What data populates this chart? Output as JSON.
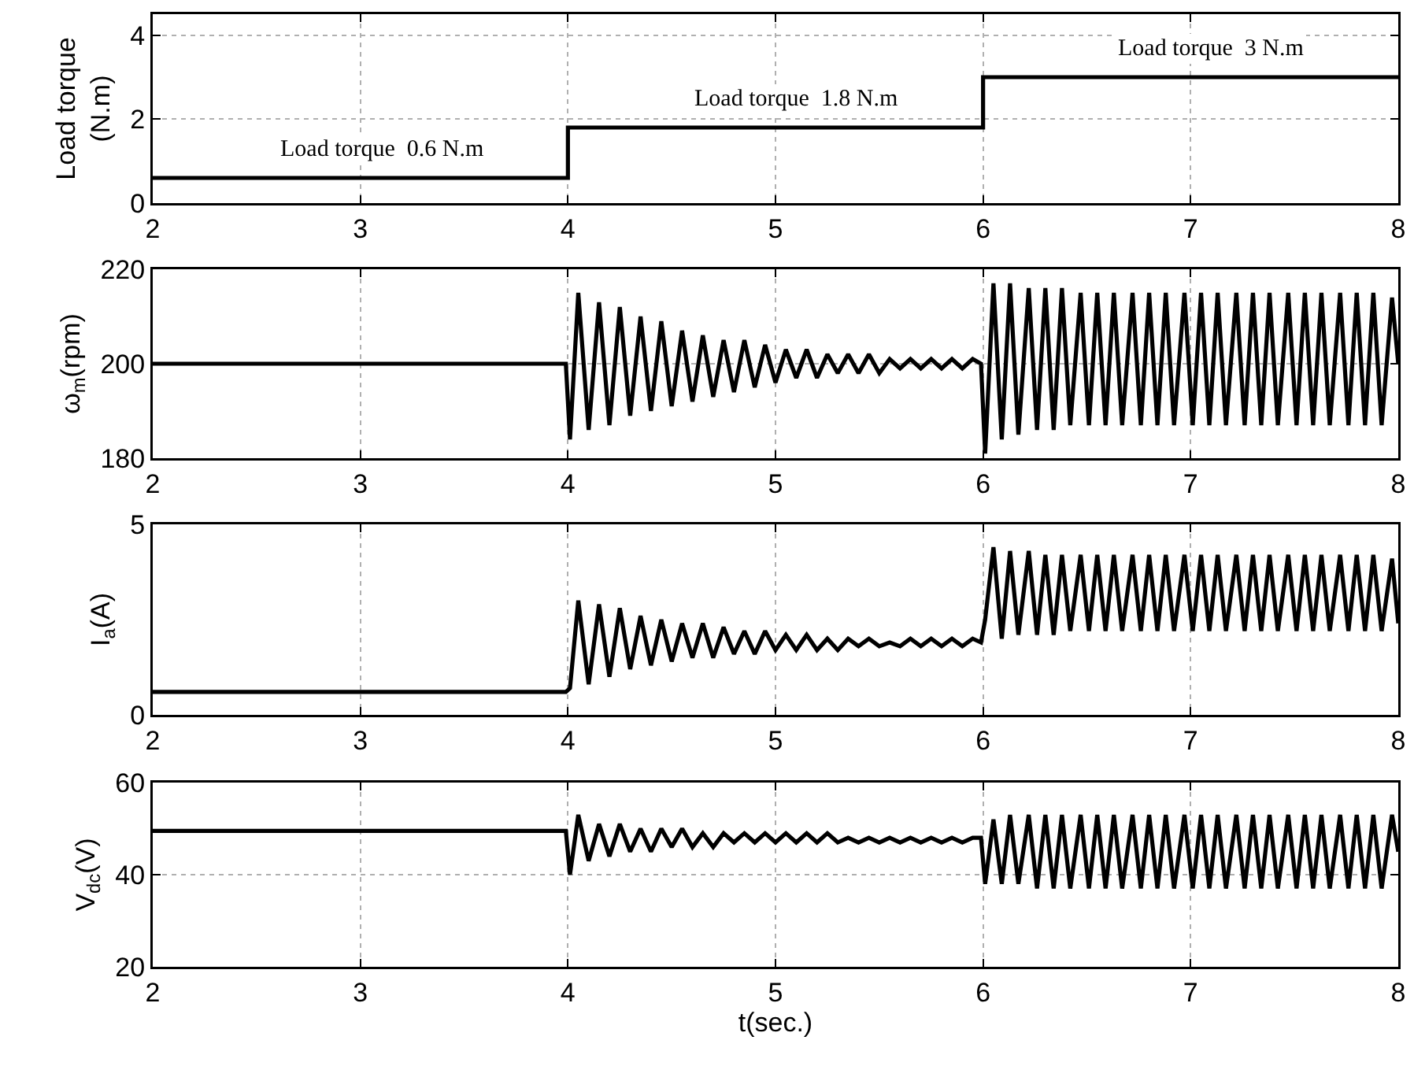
{
  "chart_data": [
    {
      "type": "step",
      "ylabel": "Load torque\n(N.m)",
      "x": [
        2,
        4,
        6,
        8
      ],
      "series": [
        {
          "color": "#000000",
          "values": [
            0.6,
            1.8,
            3,
            3
          ]
        }
      ],
      "xlim": [
        2,
        8
      ],
      "xticks": [
        2,
        3,
        4,
        5,
        6,
        7,
        8
      ],
      "ylim": [
        0,
        4.5
      ],
      "yticks": [
        0,
        2,
        4
      ],
      "grid": true,
      "annotations": [
        "Load torque  0.6 N.m",
        "Load torque  1.8 N.m",
        "Load torque  3 N.m"
      ]
    },
    {
      "type": "line",
      "ylabel": "ω$_{m}$(rpm)",
      "x": [
        2,
        3.99,
        4.01,
        4.05,
        4.1,
        4.15,
        4.2,
        4.25,
        4.3,
        4.35,
        4.4,
        4.45,
        4.5,
        4.55,
        4.6,
        4.65,
        4.7,
        4.75,
        4.8,
        4.85,
        4.9,
        4.95,
        5.0,
        5.05,
        5.1,
        5.15,
        5.2,
        5.25,
        5.3,
        5.35,
        5.4,
        5.45,
        5.5,
        5.55,
        5.6,
        5.65,
        5.7,
        5.75,
        5.8,
        5.85,
        5.9,
        5.95,
        5.99,
        6.01,
        6.05,
        6.09,
        6.13,
        6.17,
        6.22,
        6.26,
        6.3,
        6.34,
        6.38,
        6.42,
        6.47,
        6.51,
        6.55,
        6.59,
        6.63,
        6.67,
        6.72,
        6.76,
        6.8,
        6.84,
        6.88,
        6.92,
        6.97,
        7.01,
        7.05,
        7.09,
        7.13,
        7.17,
        7.22,
        7.26,
        7.3,
        7.34,
        7.38,
        7.42,
        7.47,
        7.51,
        7.55,
        7.59,
        7.63,
        7.67,
        7.72,
        7.76,
        7.8,
        7.84,
        7.88,
        7.92,
        7.97,
        8.0
      ],
      "series": [
        {
          "color": "#000000",
          "values": [
            200,
            200,
            184,
            215,
            186,
            213,
            187,
            212,
            189,
            210,
            190,
            209,
            191,
            207,
            192,
            206,
            193,
            205,
            194,
            205,
            195,
            204,
            196,
            203,
            197,
            203,
            197,
            202,
            198,
            202,
            198,
            202,
            198,
            201,
            199,
            201,
            199,
            201,
            199,
            201,
            199,
            201,
            200,
            181,
            217,
            184,
            217,
            185,
            216,
            186,
            216,
            186,
            216,
            187,
            215,
            187,
            215,
            187,
            215,
            187,
            215,
            187,
            215,
            187,
            215,
            187,
            215,
            187,
            215,
            187,
            215,
            187,
            215,
            187,
            215,
            187,
            215,
            187,
            215,
            187,
            215,
            187,
            215,
            187,
            215,
            187,
            215,
            187,
            215,
            187,
            214,
            200
          ]
        }
      ],
      "xlim": [
        2,
        8
      ],
      "xticks": [
        2,
        3,
        4,
        5,
        6,
        7,
        8
      ],
      "ylim": [
        180,
        220
      ],
      "yticks": [
        180,
        200,
        220
      ],
      "grid": true
    },
    {
      "type": "line",
      "ylabel": "I$_{a}$(A)",
      "x": [
        2,
        3.99,
        4.01,
        4.05,
        4.1,
        4.15,
        4.2,
        4.25,
        4.3,
        4.35,
        4.4,
        4.45,
        4.5,
        4.55,
        4.6,
        4.65,
        4.7,
        4.75,
        4.8,
        4.85,
        4.9,
        4.95,
        5.0,
        5.05,
        5.1,
        5.15,
        5.2,
        5.25,
        5.3,
        5.35,
        5.4,
        5.45,
        5.5,
        5.55,
        5.6,
        5.65,
        5.7,
        5.75,
        5.8,
        5.85,
        5.9,
        5.95,
        5.99,
        6.01,
        6.05,
        6.09,
        6.13,
        6.17,
        6.22,
        6.26,
        6.3,
        6.34,
        6.38,
        6.42,
        6.47,
        6.51,
        6.55,
        6.59,
        6.63,
        6.67,
        6.72,
        6.76,
        6.8,
        6.84,
        6.88,
        6.92,
        6.97,
        7.01,
        7.05,
        7.09,
        7.13,
        7.17,
        7.22,
        7.26,
        7.3,
        7.34,
        7.38,
        7.42,
        7.47,
        7.51,
        7.55,
        7.59,
        7.63,
        7.67,
        7.72,
        7.76,
        7.8,
        7.84,
        7.88,
        7.92,
        7.97,
        8.0
      ],
      "series": [
        {
          "color": "#000000",
          "values": [
            0.6,
            0.6,
            0.7,
            3.0,
            0.8,
            2.9,
            1.0,
            2.8,
            1.2,
            2.6,
            1.3,
            2.5,
            1.4,
            2.4,
            1.5,
            2.4,
            1.5,
            2.3,
            1.6,
            2.2,
            1.6,
            2.2,
            1.7,
            2.1,
            1.7,
            2.1,
            1.7,
            2.0,
            1.7,
            2.0,
            1.8,
            2.0,
            1.8,
            1.9,
            1.8,
            2.0,
            1.8,
            2.0,
            1.8,
            2.0,
            1.8,
            2.0,
            1.9,
            2.5,
            4.4,
            2.0,
            4.3,
            2.1,
            4.3,
            2.1,
            4.2,
            2.1,
            4.2,
            2.2,
            4.2,
            2.2,
            4.2,
            2.2,
            4.2,
            2.2,
            4.2,
            2.2,
            4.2,
            2.2,
            4.2,
            2.2,
            4.2,
            2.2,
            4.2,
            2.2,
            4.2,
            2.2,
            4.2,
            2.2,
            4.2,
            2.2,
            4.2,
            2.2,
            4.2,
            2.2,
            4.2,
            2.2,
            4.2,
            2.2,
            4.2,
            2.2,
            4.2,
            2.2,
            4.2,
            2.2,
            4.1,
            2.4
          ]
        }
      ],
      "xlim": [
        2,
        8
      ],
      "xticks": [
        2,
        3,
        4,
        5,
        6,
        7,
        8
      ],
      "ylim": [
        0,
        5
      ],
      "yticks": [
        0,
        5
      ],
      "grid": true
    },
    {
      "type": "line",
      "ylabel": "V$_{dc}$(V)",
      "xlabel": "t(sec.)",
      "x": [
        2,
        3.99,
        4.01,
        4.05,
        4.1,
        4.15,
        4.2,
        4.25,
        4.3,
        4.35,
        4.4,
        4.45,
        4.5,
        4.55,
        4.6,
        4.65,
        4.7,
        4.75,
        4.8,
        4.85,
        4.9,
        4.95,
        5.0,
        5.05,
        5.1,
        5.15,
        5.2,
        5.25,
        5.3,
        5.35,
        5.4,
        5.45,
        5.5,
        5.55,
        5.6,
        5.65,
        5.7,
        5.75,
        5.8,
        5.85,
        5.9,
        5.95,
        5.99,
        6.01,
        6.05,
        6.09,
        6.13,
        6.17,
        6.22,
        6.26,
        6.3,
        6.34,
        6.38,
        6.42,
        6.47,
        6.51,
        6.55,
        6.59,
        6.63,
        6.67,
        6.72,
        6.76,
        6.8,
        6.84,
        6.88,
        6.92,
        6.97,
        7.01,
        7.05,
        7.09,
        7.13,
        7.17,
        7.22,
        7.26,
        7.3,
        7.34,
        7.38,
        7.42,
        7.47,
        7.51,
        7.55,
        7.59,
        7.63,
        7.67,
        7.72,
        7.76,
        7.8,
        7.84,
        7.88,
        7.92,
        7.97,
        8.0
      ],
      "series": [
        {
          "color": "#000000",
          "values": [
            49.5,
            49.5,
            40,
            53,
            43,
            51,
            44,
            51,
            45,
            50,
            45,
            50,
            46,
            50,
            46,
            49,
            46,
            49,
            47,
            49,
            47,
            49,
            47,
            49,
            47,
            49,
            47,
            49,
            47,
            48,
            47,
            48,
            47,
            48,
            47,
            48,
            47,
            48,
            47,
            48,
            47,
            48,
            48,
            38,
            52,
            38,
            53,
            38,
            53,
            37,
            53,
            37,
            53,
            37,
            53,
            37,
            53,
            37,
            53,
            37,
            53,
            37,
            53,
            37,
            53,
            37,
            53,
            37,
            53,
            37,
            53,
            37,
            53,
            37,
            53,
            37,
            53,
            37,
            53,
            37,
            53,
            37,
            53,
            37,
            53,
            37,
            53,
            37,
            53,
            37,
            53,
            45
          ]
        }
      ],
      "xlim": [
        2,
        8
      ],
      "xticks": [
        2,
        3,
        4,
        5,
        6,
        7,
        8
      ],
      "ylim": [
        20,
        60
      ],
      "yticks": [
        20,
        40,
        60
      ],
      "grid": true
    }
  ]
}
